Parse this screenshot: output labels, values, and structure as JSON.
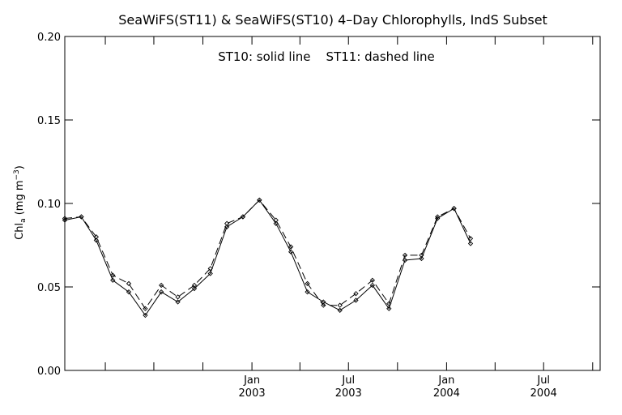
{
  "chart_data": {
    "type": "line",
    "title": "SeaWiFS(ST11) & SeaWiFS(ST10) 4–Day Chlorophylls, IndS Subset",
    "annotation": "ST10: solid line    ST11: dashed line",
    "ylabel_main": "Chl",
    "ylabel_sub": "a",
    "ylabel_unit": " (mg m",
    "ylabel_exp": "−3",
    "ylabel_close": ")",
    "ylim": [
      0.0,
      0.2
    ],
    "yticks": [
      {
        "value": 0.0,
        "label": "0.00"
      },
      {
        "value": 0.05,
        "label": "0.05"
      },
      {
        "value": 0.1,
        "label": "0.10"
      },
      {
        "value": 0.15,
        "label": "0.15"
      },
      {
        "value": 0.2,
        "label": "0.20"
      }
    ],
    "xlim": [
      "2002-01-15",
      "2004-10-15"
    ],
    "xticks_labeled": [
      {
        "date": "2003-01-01",
        "month": "Jan",
        "year": "2003"
      },
      {
        "date": "2003-07-01",
        "month": "Jul",
        "year": "2003"
      },
      {
        "date": "2004-01-01",
        "month": "Jan",
        "year": "2004"
      },
      {
        "date": "2004-07-01",
        "month": "Jul",
        "year": "2004"
      }
    ],
    "xticks_minor": [
      "2002-04-01",
      "2002-07-01",
      "2002-10-01",
      "2003-04-01",
      "2003-10-01",
      "2004-04-01",
      "2004-10-01"
    ],
    "series": [
      {
        "name": "ST10",
        "style": "solid",
        "color": "#000000",
        "points": [
          [
            "2002-01-15",
            0.09
          ],
          [
            "2002-02-15",
            0.092
          ],
          [
            "2002-03-15",
            0.078
          ],
          [
            "2002-04-15",
            0.054
          ],
          [
            "2002-05-15",
            0.047
          ],
          [
            "2002-06-15",
            0.033
          ],
          [
            "2002-07-15",
            0.047
          ],
          [
            "2002-08-15",
            0.041
          ],
          [
            "2002-09-15",
            0.049
          ],
          [
            "2002-10-15",
            0.058
          ],
          [
            "2002-11-15",
            0.086
          ],
          [
            "2002-12-15",
            0.092
          ],
          [
            "2003-01-15",
            0.102
          ],
          [
            "2003-02-15",
            0.088
          ],
          [
            "2003-03-15",
            0.071
          ],
          [
            "2003-04-15",
            0.047
          ],
          [
            "2003-05-15",
            0.041
          ],
          [
            "2003-06-15",
            0.036
          ],
          [
            "2003-07-15",
            0.042
          ],
          [
            "2003-08-15",
            0.051
          ],
          [
            "2003-09-15",
            0.037
          ],
          [
            "2003-10-15",
            0.066
          ],
          [
            "2003-11-15",
            0.067
          ],
          [
            "2003-12-15",
            0.091
          ],
          [
            "2004-01-15",
            0.097
          ],
          [
            "2004-02-15",
            0.076
          ]
        ]
      },
      {
        "name": "ST11",
        "style": "dashed",
        "color": "#000000",
        "points": [
          [
            "2002-01-15",
            0.091
          ],
          [
            "2002-02-15",
            0.092
          ],
          [
            "2002-03-15",
            0.08
          ],
          [
            "2002-04-15",
            0.057
          ],
          [
            "2002-05-15",
            0.052
          ],
          [
            "2002-06-15",
            0.037
          ],
          [
            "2002-07-15",
            0.051
          ],
          [
            "2002-08-15",
            0.044
          ],
          [
            "2002-09-15",
            0.051
          ],
          [
            "2002-10-15",
            0.061
          ],
          [
            "2002-11-15",
            0.088
          ],
          [
            "2002-12-15",
            0.092
          ],
          [
            "2003-01-15",
            0.102
          ],
          [
            "2003-02-15",
            0.09
          ],
          [
            "2003-03-15",
            0.074
          ],
          [
            "2003-04-15",
            0.052
          ],
          [
            "2003-05-15",
            0.039
          ],
          [
            "2003-06-15",
            0.039
          ],
          [
            "2003-07-15",
            0.046
          ],
          [
            "2003-08-15",
            0.054
          ],
          [
            "2003-09-15",
            0.04
          ],
          [
            "2003-10-15",
            0.069
          ],
          [
            "2003-11-15",
            0.069
          ],
          [
            "2003-12-15",
            0.092
          ],
          [
            "2004-01-15",
            0.097
          ],
          [
            "2004-02-15",
            0.079
          ]
        ]
      }
    ],
    "grid": false,
    "legend": "none"
  }
}
